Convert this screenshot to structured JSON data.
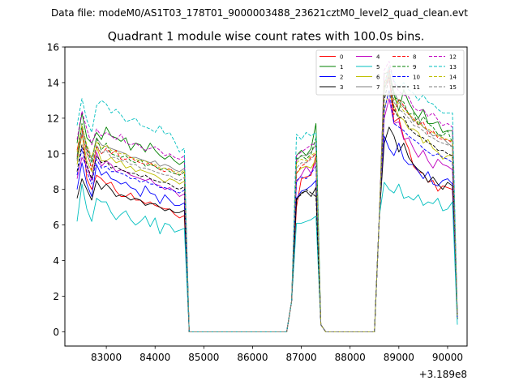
{
  "chart_data": {
    "type": "line",
    "suptitle": "Data file: modeM0/AS1T03_178T01_9000003488_23621cztM0_level2_quad_clean.evt",
    "title": "Quadrant 1 module wise count rates with 100.0s bins.",
    "xlabel": "",
    "ylabel": "",
    "x_offset_label": "+3.189e8",
    "xlim": [
      82150,
      90400
    ],
    "ylim": [
      -0.8,
      16
    ],
    "x_ticks": [
      83000,
      84000,
      85000,
      86000,
      87000,
      88000,
      89000,
      90000
    ],
    "x_tick_labels": [
      "83000",
      "84000",
      "85000",
      "86000",
      "87000",
      "88000",
      "89000",
      "90000"
    ],
    "y_ticks": [
      0,
      2,
      4,
      6,
      8,
      10,
      12,
      14,
      16
    ],
    "y_tick_labels": [
      "0",
      "2",
      "4",
      "6",
      "8",
      "10",
      "12",
      "14",
      "16"
    ],
    "legend_position": "upper right",
    "legend_columns": 4,
    "gap_segments": [
      {
        "x": [
          84700,
          84800,
          86700
        ],
        "y": [
          0,
          0,
          0
        ]
      },
      {
        "x": [
          87500,
          87600,
          88500
        ],
        "y": [
          0,
          0,
          0
        ]
      }
    ],
    "series": [
      {
        "name": "0",
        "color": "#ff0000",
        "dash": "solid",
        "seg1": [
          10.2,
          11.5,
          8.6,
          8.0,
          8.8,
          8.6,
          8.3,
          8.4,
          7.9,
          7.6,
          7.6,
          7.8,
          7.4,
          7.4,
          7.2,
          7.3,
          7.1,
          7.0,
          6.9,
          6.9,
          6.6,
          6.4
        ],
        "seg2": [
          7.0,
          8.6,
          8.7,
          8.8,
          9.9
        ],
        "seg3": [
          13.6,
          14.3,
          11.8,
          12.0,
          10.9,
          10.3,
          9.3,
          9.0,
          8.9,
          8.4,
          8.5,
          7.9,
          8.2,
          8.1,
          8.0,
          0.8
        ]
      },
      {
        "name": "1",
        "color": "#008000",
        "dash": "solid",
        "seg1": [
          10.6,
          12.3,
          10.9,
          10.6,
          11.2,
          10.8,
          11.5,
          11.0,
          10.9,
          10.7,
          10.9,
          10.2,
          10.6,
          10.5,
          10.1,
          10.6,
          10.2,
          9.9,
          9.7,
          9.9,
          9.6,
          9.4
        ],
        "seg2": [
          9.9,
          10.2,
          9.9,
          10.3,
          11.7
        ],
        "seg3": [
          14.5,
          14.6,
          13.4,
          12.4,
          13.6,
          12.9,
          12.4,
          12.0,
          12.5,
          11.7,
          11.7,
          11.8,
          11.2,
          11.3,
          11.3,
          0.9
        ]
      },
      {
        "name": "2",
        "color": "#0000ff",
        "dash": "solid",
        "seg1": [
          8.0,
          9.5,
          8.3,
          7.6,
          9.4,
          8.8,
          9.0,
          8.6,
          8.5,
          8.3,
          8.4,
          8.1,
          8.0,
          7.6,
          8.2,
          7.8,
          7.7,
          7.2,
          7.7,
          7.4,
          7.1,
          7.1
        ],
        "seg2": [
          7.5,
          7.9,
          8.0,
          8.2,
          8.5
        ],
        "seg3": [
          11.0,
          10.3,
          9.9,
          10.6,
          9.7,
          9.4,
          9.4,
          9.0,
          8.6,
          9.0,
          8.3,
          8.2,
          8.5,
          8.6,
          8.3,
          0.7
        ]
      },
      {
        "name": "3",
        "color": "#000000",
        "dash": "solid",
        "seg1": [
          7.5,
          8.6,
          8.0,
          7.4,
          8.5,
          8.0,
          8.3,
          8.0,
          7.6,
          7.7,
          7.6,
          7.4,
          7.5,
          7.4,
          7.1,
          7.2,
          7.2,
          7.0,
          6.8,
          6.9,
          6.7,
          6.7
        ],
        "seg2": [
          7.4,
          7.8,
          7.9,
          7.6,
          8.1
        ],
        "seg3": [
          10.6,
          11.5,
          11.0,
          10.1,
          10.6,
          9.8,
          9.4,
          9.1,
          8.9,
          8.4,
          8.7,
          8.3,
          8.0,
          8.4,
          8.2,
          0.7
        ]
      },
      {
        "name": "4",
        "color": "#bf00bf",
        "dash": "solid",
        "seg1": [
          8.6,
          9.8,
          9.3,
          8.5,
          10.1,
          9.3,
          9.6,
          9.4,
          9.0,
          9.1,
          9.0,
          8.8,
          8.7,
          8.6,
          8.5,
          8.6,
          8.3,
          8.2,
          8.0,
          8.1,
          7.9,
          7.6
        ],
        "seg2": [
          8.4,
          8.8,
          9.3,
          8.9,
          9.6
        ],
        "seg3": [
          12.0,
          13.1,
          11.7,
          11.8,
          10.8,
          10.9,
          10.3,
          9.8,
          10.2,
          9.6,
          9.2,
          9.7,
          9.4,
          9.3,
          9.1,
          0.8
        ]
      },
      {
        "name": "5",
        "color": "#00bfbf",
        "dash": "solid",
        "seg1": [
          6.2,
          8.3,
          6.9,
          6.2,
          7.5,
          7.3,
          7.3,
          6.7,
          6.3,
          6.6,
          6.8,
          6.3,
          6.0,
          6.2,
          6.5,
          5.9,
          6.4,
          5.5,
          6.1,
          6.0,
          5.6,
          5.7
        ],
        "seg2": [
          6.1,
          6.1,
          6.2,
          6.3,
          6.5
        ],
        "seg3": [
          8.4,
          8.0,
          7.8,
          8.3,
          7.5,
          7.6,
          7.4,
          7.7,
          7.1,
          7.3,
          7.2,
          7.5,
          6.8,
          6.9,
          7.3,
          0.4
        ]
      },
      {
        "name": "6",
        "color": "#bfbf00",
        "dash": "solid",
        "seg1": [
          9.4,
          11.1,
          9.6,
          9.0,
          10.4,
          9.6,
          9.6,
          9.8,
          9.5,
          9.6,
          9.2,
          9.3,
          9.0,
          9.1,
          9.0,
          8.9,
          8.8,
          8.6,
          8.4,
          8.6,
          8.5,
          8.3
        ],
        "seg2": [
          8.9,
          9.2,
          9.3,
          9.2,
          9.7
        ],
        "seg3": [
          12.5,
          13.5,
          12.7,
          12.1,
          11.9,
          11.4,
          11.4,
          11.2,
          10.6,
          10.8,
          10.3,
          10.1,
          9.7,
          9.9,
          9.9,
          0.8
        ]
      },
      {
        "name": "7",
        "color": "#7f7f7f",
        "dash": "solid",
        "seg1": [
          9.9,
          11.5,
          10.4,
          9.7,
          10.9,
          10.5,
          10.4,
          10.3,
          10.2,
          10.1,
          10.0,
          9.8,
          9.8,
          9.7,
          9.6,
          9.5,
          9.6,
          9.3,
          9.4,
          9.3,
          9.1,
          9.0
        ],
        "seg2": [
          9.6,
          9.9,
          9.9,
          10.1,
          10.5
        ],
        "seg3": [
          13.5,
          14.7,
          13.5,
          12.9,
          12.6,
          12.3,
          11.8,
          12.0,
          11.5,
          11.3,
          11.0,
          11.1,
          10.9,
          10.6,
          10.4,
          0.9
        ]
      },
      {
        "name": "8",
        "color": "#ff0000",
        "dash": "4,2",
        "seg1": [
          9.8,
          11.1,
          10.2,
          9.1,
          10.4,
          10.0,
          10.3,
          10.0,
          10.2,
          9.7,
          9.7,
          9.8,
          9.6,
          9.5,
          9.4,
          9.5,
          9.3,
          9.1,
          9.0,
          9.2,
          8.9,
          8.8
        ],
        "seg2": [
          8.9,
          9.3,
          9.5,
          9.8,
          10.0
        ],
        "seg3": [
          13.9,
          14.9,
          12.2,
          13.1,
          12.7,
          12.2,
          12.0,
          11.6,
          11.8,
          11.1,
          11.3,
          10.9,
          10.8,
          10.8,
          10.6,
          0.9
        ]
      },
      {
        "name": "9",
        "color": "#008000",
        "dash": "4,2",
        "seg1": [
          9.7,
          11.7,
          10.3,
          9.5,
          10.9,
          10.2,
          10.6,
          10.0,
          9.9,
          9.8,
          9.9,
          9.6,
          9.5,
          9.7,
          9.3,
          9.4,
          9.3,
          9.1,
          9.2,
          9.0,
          8.9,
          8.8
        ],
        "seg2": [
          9.7,
          9.9,
          9.7,
          10.0,
          10.9
        ],
        "seg3": [
          13.7,
          14.5,
          13.2,
          13.0,
          12.9,
          12.2,
          12.3,
          11.6,
          12.1,
          11.7,
          11.5,
          11.1,
          11.0,
          11.3,
          10.6,
          0.9
        ]
      },
      {
        "name": "10",
        "color": "#0000ff",
        "dash": "4,2",
        "seg1": [
          8.8,
          10.3,
          9.0,
          8.3,
          9.7,
          9.2,
          9.3,
          9.0,
          9.0,
          8.9,
          8.8,
          8.6,
          8.6,
          8.4,
          8.5,
          8.3,
          8.3,
          8.1,
          8.1,
          8.0,
          7.9,
          7.8
        ],
        "seg2": [
          8.5,
          8.7,
          8.6,
          8.9,
          9.3
        ],
        "seg3": [
          12.4,
          13.6,
          11.7,
          11.5,
          11.3,
          11.0,
          10.8,
          10.6,
          10.3,
          10.1,
          9.9,
          10.0,
          9.8,
          9.7,
          9.5,
          0.8
        ]
      },
      {
        "name": "11",
        "color": "#000000",
        "dash": "4,2",
        "seg1": [
          9.0,
          10.5,
          9.4,
          8.6,
          9.9,
          9.5,
          9.6,
          9.2,
          9.3,
          9.1,
          9.0,
          8.9,
          8.9,
          8.7,
          8.8,
          8.6,
          8.5,
          8.4,
          8.4,
          8.3,
          8.1,
          8.0
        ],
        "seg2": [
          7.5,
          7.7,
          8.0,
          7.8,
          7.6
        ],
        "seg3": [
          13.0,
          14.3,
          12.5,
          12.0,
          12.1,
          11.5,
          11.2,
          11.0,
          10.9,
          10.6,
          10.5,
          10.2,
          10.2,
          10.0,
          9.9,
          0.8
        ]
      },
      {
        "name": "12",
        "color": "#bf00bf",
        "dash": "4,2",
        "seg1": [
          10.8,
          12.4,
          11.4,
          10.5,
          11.4,
          11.0,
          11.2,
          11.0,
          10.8,
          11.1,
          10.6,
          10.5,
          10.6,
          10.4,
          10.2,
          10.3,
          10.4,
          10.2,
          9.9,
          10.0,
          9.8,
          9.7
        ],
        "seg2": [
          9.9,
          10.1,
          10.3,
          10.5,
          10.6
        ],
        "seg3": [
          14.7,
          15.2,
          14.0,
          13.5,
          13.3,
          13.2,
          12.6,
          12.4,
          12.5,
          12.1,
          12.3,
          11.9,
          11.6,
          11.7,
          11.5,
          1.0
        ]
      },
      {
        "name": "13",
        "color": "#00bfbf",
        "dash": "4,2",
        "seg1": [
          11.6,
          13.1,
          11.9,
          11.2,
          12.7,
          13.0,
          12.8,
          12.3,
          12.5,
          12.2,
          11.8,
          11.9,
          12.0,
          11.6,
          11.5,
          11.4,
          11.2,
          11.6,
          11.1,
          11.2,
          10.7,
          10.1
        ],
        "seg2": [
          11.1,
          10.8,
          11.2,
          11.0,
          11.2
        ],
        "seg3": [
          13.8,
          14.9,
          14.1,
          13.7,
          14.0,
          13.6,
          13.4,
          13.0,
          13.3,
          12.9,
          12.8,
          12.5,
          12.3,
          12.3,
          12.3,
          1.1
        ]
      },
      {
        "name": "14",
        "color": "#bfbf00",
        "dash": "4,2",
        "seg1": [
          10.1,
          11.6,
          10.5,
          9.8,
          10.7,
          10.3,
          10.5,
          10.2,
          10.1,
          10.0,
          10.0,
          9.8,
          9.7,
          9.6,
          9.6,
          9.4,
          9.4,
          9.2,
          9.2,
          9.1,
          9.0,
          8.9
        ],
        "seg2": [
          9.5,
          9.7,
          9.6,
          9.9,
          10.1
        ],
        "seg3": [
          13.9,
          14.4,
          13.1,
          12.8,
          12.4,
          12.3,
          11.9,
          11.8,
          11.5,
          11.4,
          11.2,
          11.0,
          10.9,
          10.8,
          10.7,
          0.9
        ]
      },
      {
        "name": "15",
        "color": "#7f7f7f",
        "dash": "4,2",
        "seg1": [
          9.6,
          11.2,
          10.0,
          9.3,
          10.5,
          10.0,
          10.2,
          9.8,
          9.8,
          9.6,
          9.6,
          9.4,
          9.4,
          9.2,
          9.2,
          9.1,
          9.0,
          8.9,
          8.8,
          8.8,
          8.6,
          8.5
        ],
        "seg2": [
          9.2,
          9.5,
          9.5,
          9.7,
          10.0
        ],
        "seg3": [
          13.5,
          14.6,
          12.9,
          12.5,
          12.3,
          12.0,
          11.6,
          11.5,
          11.3,
          11.0,
          10.9,
          10.7,
          10.6,
          10.5,
          10.4,
          0.9
        ]
      }
    ],
    "segment_x": {
      "seg1_start": 82400,
      "seg1_step": 100,
      "seg1_count": 22,
      "seg1_tail": [
        [
          84600,
          null
        ],
        [
          84700,
          0
        ]
      ],
      "seg2_lead": [
        [
          86700,
          0
        ],
        [
          86800,
          1.7
        ]
      ],
      "seg2_start": 86900,
      "seg2_step": 100,
      "seg2_tail": [
        [
          87400,
          0.4
        ],
        [
          87500,
          0
        ]
      ],
      "seg3_lead": [
        [
          88500,
          0
        ],
        [
          88600,
          6.5
        ]
      ],
      "seg3_start": 88700,
      "seg3_step": 100
    }
  }
}
